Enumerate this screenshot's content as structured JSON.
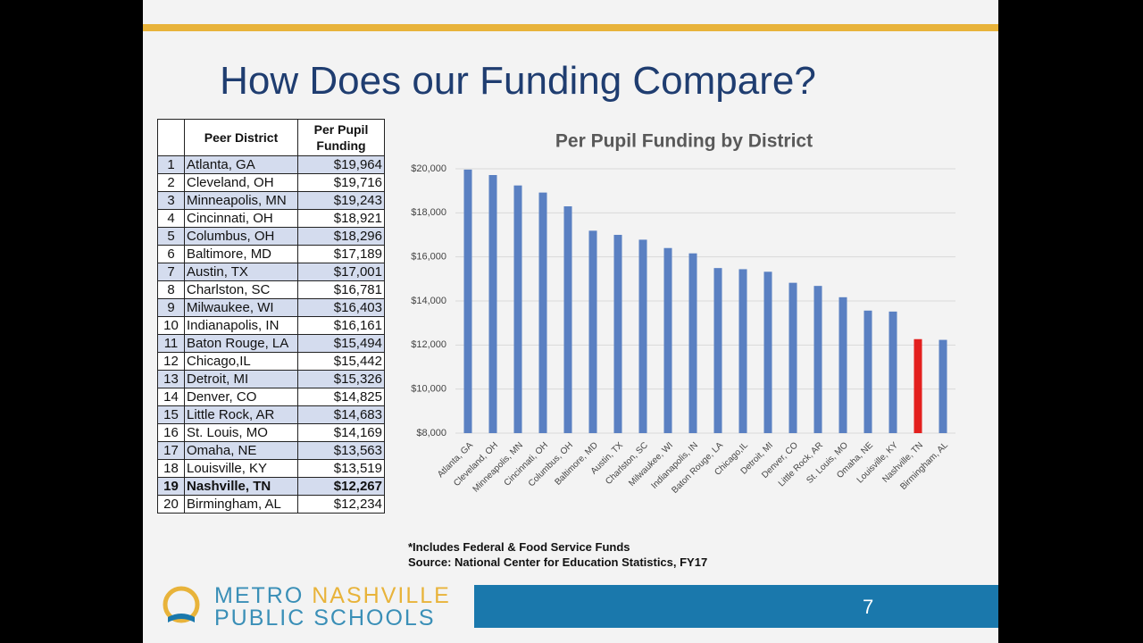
{
  "slide_title": "How Does our Funding Compare?",
  "table": {
    "header": [
      "",
      "Peer District",
      "Per Pupil Funding"
    ],
    "rows": [
      [
        "1",
        "Atlanta, GA",
        "$19,964"
      ],
      [
        "2",
        "Cleveland, OH",
        "$19,716"
      ],
      [
        "3",
        "Minneapolis, MN",
        "$19,243"
      ],
      [
        "4",
        "Cincinnati, OH",
        "$18,921"
      ],
      [
        "5",
        "Columbus, OH",
        "$18,296"
      ],
      [
        "6",
        "Baltimore, MD",
        "$17,189"
      ],
      [
        "7",
        "Austin, TX",
        "$17,001"
      ],
      [
        "8",
        "Charlston, SC",
        "$16,781"
      ],
      [
        "9",
        "Milwaukee, WI",
        "$16,403"
      ],
      [
        "10",
        "Indianapolis, IN",
        "$16,161"
      ],
      [
        "11",
        "Baton Rouge, LA",
        "$15,494"
      ],
      [
        "12",
        "Chicago,IL",
        "$15,442"
      ],
      [
        "13",
        "Detroit, MI",
        "$15,326"
      ],
      [
        "14",
        "Denver, CO",
        "$14,825"
      ],
      [
        "15",
        "Little Rock, AR",
        "$14,683"
      ],
      [
        "16",
        "St. Louis, MO",
        "$14,169"
      ],
      [
        "17",
        "Omaha, NE",
        "$13,563"
      ],
      [
        "18",
        "Louisville, KY",
        "$13,519"
      ],
      [
        "19",
        "Nashville, TN",
        "$12,267"
      ],
      [
        "20",
        "Birmingham, AL",
        "$12,234"
      ]
    ]
  },
  "chart_data": {
    "type": "bar",
    "title": "Per Pupil Funding by District",
    "categories": [
      "Atlanta, GA",
      "Cleveland, OH",
      "Minneapolis, MN",
      "Cincinnati, OH",
      "Columbus, OH",
      "Baltimore, MD",
      "Austin, TX",
      "Charlston, SC",
      "Milwaukee, WI",
      "Indianapolis, IN",
      "Baton Rouge, LA",
      "Chicago,IL",
      "Detroit, MI",
      "Denver, CO",
      "Little Rock, AR",
      "St. Louis, MO",
      "Omaha, NE",
      "Louisville, KY",
      "Nashville, TN",
      "Birmingham, AL"
    ],
    "values": [
      19964,
      19716,
      19243,
      18921,
      18296,
      17189,
      17001,
      16781,
      16403,
      16161,
      15494,
      15442,
      15326,
      14825,
      14683,
      14169,
      13563,
      13519,
      12267,
      12234
    ],
    "colors": [
      "#5a80c2",
      "#5a80c2",
      "#5a80c2",
      "#5a80c2",
      "#5a80c2",
      "#5a80c2",
      "#5a80c2",
      "#5a80c2",
      "#5a80c2",
      "#5a80c2",
      "#5a80c2",
      "#5a80c2",
      "#5a80c2",
      "#5a80c2",
      "#5a80c2",
      "#5a80c2",
      "#5a80c2",
      "#5a80c2",
      "#e3201e",
      "#5a80c2"
    ],
    "ylim": [
      8000,
      20000
    ],
    "yticks": [
      {
        "value": 8000,
        "label": "$8,000"
      },
      {
        "value": 10000,
        "label": "$10,000"
      },
      {
        "value": 12000,
        "label": "$12,000"
      },
      {
        "value": 14000,
        "label": "$14,000"
      },
      {
        "value": 16000,
        "label": "$16,000"
      },
      {
        "value": 18000,
        "label": "$18,000"
      },
      {
        "value": 20000,
        "label": "$20,000"
      }
    ],
    "grid": true
  },
  "footnotes": [
    "*Includes Federal & Food Service Funds",
    "Source: National Center for Education Statistics, FY17"
  ],
  "logo": {
    "word1": "METRO",
    "word2": "NASHVILLE",
    "word3": "PUBLIC SCHOOLS"
  },
  "page_number": "7"
}
